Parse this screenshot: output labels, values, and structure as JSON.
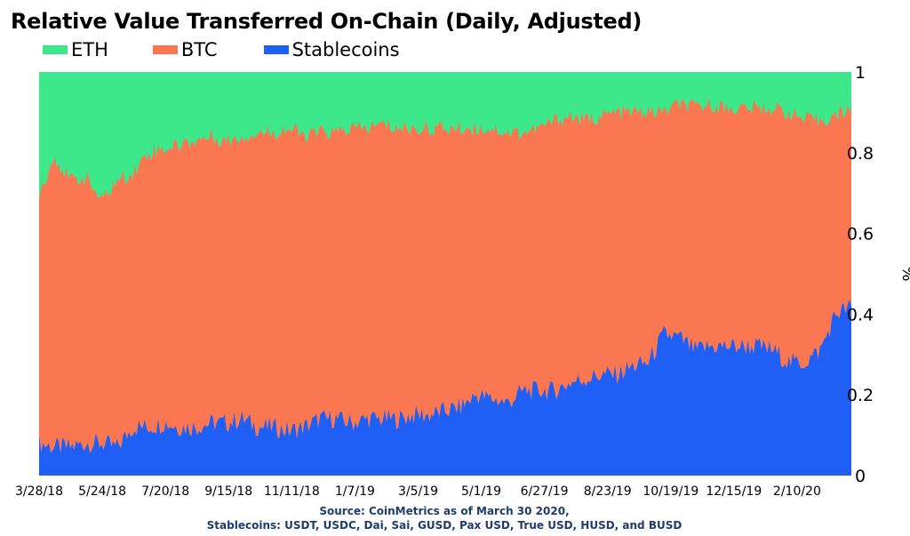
{
  "chart_data": {
    "type": "area",
    "stacked": true,
    "normalized": true,
    "title": "Relative Value Transferred On-Chain (Daily, Adjusted)",
    "ylabel": "%",
    "ylim": [
      0,
      1
    ],
    "y_ticks": [
      "0",
      "0.2",
      "0.4",
      "0.6",
      "0.8",
      "1"
    ],
    "x_ticks": [
      "3/28/18",
      "5/24/18",
      "7/20/18",
      "9/15/18",
      "11/11/18",
      "1/7/19",
      "3/5/19",
      "5/1/19",
      "6/27/19",
      "8/23/19",
      "10/19/19",
      "12/15/19",
      "2/10/20"
    ],
    "legend_position": "top-left",
    "grid": false,
    "series": [
      {
        "name": "ETH",
        "color": "#3de88a"
      },
      {
        "name": "BTC",
        "color": "#fb7751"
      },
      {
        "name": "Stablecoins",
        "color": "#1f5ff5"
      }
    ],
    "dates": [
      "3/28/18",
      "4/11/18",
      "4/25/18",
      "5/9/18",
      "5/24/18",
      "6/7/18",
      "6/21/18",
      "7/5/18",
      "7/20/18",
      "8/3/18",
      "8/17/18",
      "8/31/18",
      "9/15/18",
      "9/29/18",
      "10/13/18",
      "10/27/18",
      "11/11/18",
      "11/25/18",
      "12/9/18",
      "12/23/18",
      "1/7/19",
      "1/21/19",
      "2/4/19",
      "2/18/19",
      "3/5/19",
      "3/19/19",
      "4/2/19",
      "4/16/19",
      "5/1/19",
      "5/15/19",
      "5/29/19",
      "6/12/19",
      "6/27/19",
      "7/11/19",
      "7/25/19",
      "8/8/19",
      "8/23/19",
      "9/6/19",
      "9/20/19",
      "10/4/19",
      "10/19/19",
      "11/2/19",
      "11/16/19",
      "11/30/19",
      "12/15/19",
      "12/29/19",
      "1/12/20",
      "1/26/20",
      "2/10/20",
      "2/24/20",
      "3/9/20",
      "3/23/20",
      "3/30/20"
    ],
    "stablecoins_cum": [
      0.08,
      0.07,
      0.07,
      0.08,
      0.08,
      0.07,
      0.12,
      0.12,
      0.13,
      0.12,
      0.12,
      0.13,
      0.13,
      0.14,
      0.12,
      0.12,
      0.11,
      0.12,
      0.14,
      0.14,
      0.13,
      0.14,
      0.14,
      0.14,
      0.15,
      0.15,
      0.16,
      0.17,
      0.2,
      0.19,
      0.18,
      0.21,
      0.21,
      0.21,
      0.23,
      0.24,
      0.25,
      0.25,
      0.27,
      0.28,
      0.35,
      0.34,
      0.31,
      0.32,
      0.32,
      0.32,
      0.32,
      0.31,
      0.28,
      0.28,
      0.31,
      0.4,
      0.42
    ],
    "btc_eth_boundary": [
      0.7,
      0.79,
      0.73,
      0.74,
      0.68,
      0.73,
      0.75,
      0.8,
      0.81,
      0.82,
      0.83,
      0.84,
      0.83,
      0.84,
      0.85,
      0.85,
      0.86,
      0.84,
      0.85,
      0.85,
      0.86,
      0.86,
      0.87,
      0.86,
      0.86,
      0.86,
      0.86,
      0.86,
      0.86,
      0.86,
      0.85,
      0.85,
      0.86,
      0.88,
      0.89,
      0.88,
      0.89,
      0.9,
      0.9,
      0.9,
      0.9,
      0.92,
      0.91,
      0.92,
      0.91,
      0.91,
      0.91,
      0.91,
      0.9,
      0.88,
      0.88,
      0.89,
      0.91
    ]
  },
  "footer": {
    "source_line1": "Source: CoinMetrics as of March 30 2020,",
    "source_line2": "Stablecoins: USDT, USDC, Dai, Sai, GUSD, Pax USD, True USD, HUSD, and BUSD"
  }
}
